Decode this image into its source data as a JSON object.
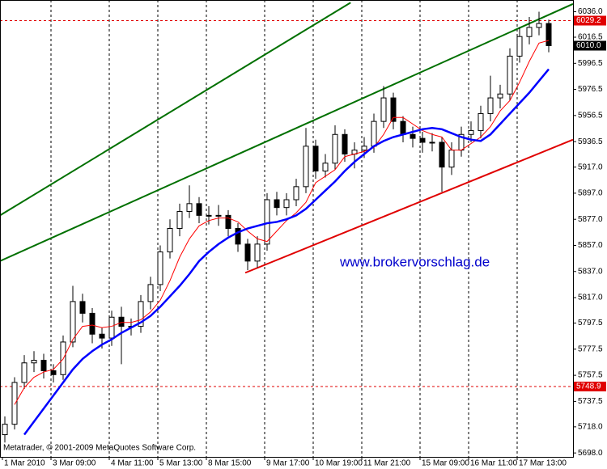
{
  "chart_data": {
    "type": "candlestick",
    "annotation": "www.brokervorschlag.de",
    "copyright": "Metatrader, © 2001-2009 MetaQuotes Software Corp.",
    "categories": [
      "1 Mar 2010",
      null,
      null,
      null,
      null,
      "3 Mar 09:00",
      null,
      null,
      null,
      null,
      null,
      "4 Mar 11:00",
      null,
      null,
      null,
      null,
      "5 Mar 13:00",
      null,
      null,
      null,
      null,
      "8 Mar 15:00",
      null,
      null,
      null,
      null,
      null,
      "9 Mar 17:00",
      null,
      null,
      null,
      null,
      "10 Mar 19:00",
      null,
      null,
      null,
      null,
      "11 Mar 21:00",
      null,
      null,
      null,
      null,
      null,
      "15 Mar 09:00",
      null,
      null,
      null,
      null,
      "16 Mar 11:00",
      null,
      null,
      null,
      null,
      "17 Mar 13:00",
      null,
      null,
      null
    ],
    "open": [
      5712,
      5720,
      5752,
      5767,
      5769,
      5761,
      5758,
      5783,
      5814,
      5805,
      5789,
      5786,
      5802,
      5795,
      5795,
      5814,
      5827,
      5852,
      5870,
      5883,
      5889,
      5880,
      5880,
      5880,
      5870,
      5858,
      5845,
      5858,
      5892,
      5886,
      5892,
      5902,
      5933,
      5914,
      5920,
      5942,
      5927,
      5930,
      5933,
      5952,
      5970,
      5952,
      5942,
      5939,
      5936,
      5936,
      5917,
      5930,
      5942,
      5945,
      5958,
      5970,
      5973,
      6002,
      6017,
      6024,
      6027
    ],
    "high": [
      5726,
      5756,
      5773,
      5776,
      5774,
      5766,
      5788,
      5826,
      5820,
      5809,
      5794,
      5807,
      5810,
      5801,
      5819,
      5833,
      5857,
      5877,
      5889,
      5903,
      5894,
      5887,
      5888,
      5884,
      5874,
      5862,
      5864,
      5897,
      5898,
      5897,
      5908,
      5947,
      5938,
      5927,
      5949,
      5946,
      5936,
      5940,
      5958,
      5979,
      5974,
      5956,
      5948,
      5944,
      5943,
      5940,
      5936,
      5948,
      5952,
      5964,
      5987,
      5980,
      6008,
      6024,
      6032,
      6036,
      6030
    ],
    "low": [
      5706,
      5716,
      5747,
      5760,
      5755,
      5752,
      5754,
      5779,
      5798,
      5782,
      5778,
      5780,
      5766,
      5788,
      5790,
      5808,
      5822,
      5847,
      5864,
      5878,
      5874,
      5873,
      5872,
      5864,
      5852,
      5838,
      5840,
      5853,
      5880,
      5880,
      5887,
      5897,
      5908,
      5909,
      5915,
      5921,
      5916,
      5924,
      5928,
      5947,
      5946,
      5936,
      5932,
      5928,
      5929,
      5898,
      5911,
      5925,
      5936,
      5939,
      5952,
      5962,
      5968,
      5997,
      6011,
      6018,
      6005
    ],
    "close": [
      5720,
      5752,
      5767,
      5769,
      5761,
      5758,
      5783,
      5814,
      5805,
      5789,
      5786,
      5802,
      5795,
      5795,
      5814,
      5827,
      5852,
      5870,
      5883,
      5889,
      5880,
      5880,
      5880,
      5870,
      5858,
      5845,
      5858,
      5892,
      5886,
      5892,
      5902,
      5933,
      5914,
      5920,
      5942,
      5927,
      5930,
      5933,
      5952,
      5970,
      5952,
      5942,
      5939,
      5936,
      5936,
      5917,
      5930,
      5942,
      5945,
      5958,
      5970,
      5973,
      6002,
      6017,
      6024,
      6027,
      6010
    ],
    "candle_color": "#000000",
    "lines": [
      {
        "color": "#ff0000",
        "width": 1,
        "values": [
          null,
          5735,
          5748,
          5756,
          5760,
          5762,
          5770,
          5785,
          5795,
          5796,
          5794,
          5795,
          5798,
          5798,
          5800,
          5806,
          5815,
          5830,
          5848,
          5862,
          5872,
          5876,
          5878,
          5878,
          5875,
          5868,
          5862,
          5860,
          5868,
          5876,
          5882,
          5890,
          5905,
          5910,
          5915,
          5925,
          5927,
          5929,
          5932,
          5942,
          5955,
          5955,
          5950,
          5945,
          5942,
          5940,
          5930,
          5930,
          5935,
          5940,
          5948,
          5960,
          5968,
          5982,
          5998,
          6012,
          6014
        ]
      },
      {
        "color": "#0000ff",
        "width": 2.5,
        "values": [
          null,
          null,
          5712,
          5722,
          5732,
          5742,
          5752,
          5762,
          5770,
          5776,
          5781,
          5785,
          5790,
          5794,
          5798,
          5803,
          5810,
          5818,
          5826,
          5835,
          5845,
          5852,
          5858,
          5863,
          5867,
          5870,
          5872,
          5874,
          5875,
          5877,
          5880,
          5885,
          5892,
          5899,
          5906,
          5914,
          5921,
          5927,
          5933,
          5937,
          5940,
          5942,
          5944,
          5946,
          5947,
          5946,
          5943,
          5940,
          5938,
          5937,
          5942,
          5950,
          5958,
          5966,
          5974,
          5983,
          5992
        ]
      }
    ],
    "trendlines": [
      {
        "color": "#007000",
        "x": [
          -0.5,
          35.6
        ],
        "y": [
          5880,
          6043
        ]
      },
      {
        "color": "#007000",
        "x": [
          -0.5,
          58.5
        ],
        "y": [
          5845,
          6042
        ]
      },
      {
        "color": "#e00000",
        "x": [
          24.75,
          58.5
        ],
        "y": [
          5836,
          5938
        ]
      }
    ],
    "levels": [
      {
        "value": 6029.2,
        "label": "6029.2",
        "color": "#e00000"
      },
      {
        "value": 5748.9,
        "label": "5748.9",
        "color": "#e00000"
      }
    ],
    "current_price": {
      "value": 6010,
      "label": "6010.0"
    },
    "ylim": [
      5695,
      6045
    ],
    "yticks": [
      {
        "value": 6036,
        "label": "6036.0"
      },
      {
        "value": 6016.5,
        "label": "6016.5"
      },
      {
        "value": 5996.5,
        "label": "5996.5"
      },
      {
        "value": 5976.5,
        "label": "5976.5"
      },
      {
        "value": 5956.5,
        "label": "5956.5"
      },
      {
        "value": 5936.5,
        "label": "5936.5"
      },
      {
        "value": 5917,
        "label": "5917.0"
      },
      {
        "value": 5897,
        "label": "5897.0"
      },
      {
        "value": 5877,
        "label": "5877.0"
      },
      {
        "value": 5857,
        "label": "5857.0"
      },
      {
        "value": 5837,
        "label": "5837.0"
      },
      {
        "value": 5817,
        "label": "5817.0"
      },
      {
        "value": 5797.5,
        "label": "5797.5"
      },
      {
        "value": 5777.5,
        "label": "5777.5"
      },
      {
        "value": 5757.5,
        "label": "5757.5"
      },
      {
        "value": 5737.5,
        "label": "5737.5"
      },
      {
        "value": 5718,
        "label": "5718.0"
      },
      {
        "value": 5698,
        "label": "5698.0"
      }
    ],
    "grid": true
  }
}
